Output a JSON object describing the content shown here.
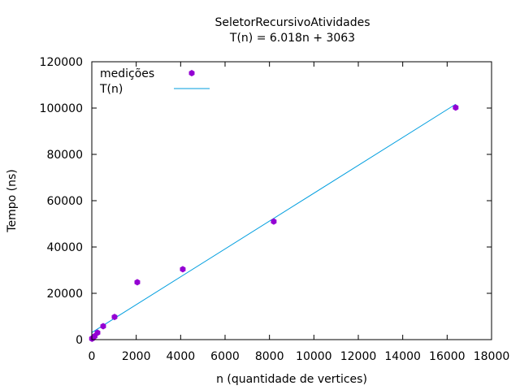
{
  "chart_data": {
    "type": "scatter",
    "title": "SeletorRecursivoAtividades",
    "subtitle": "T(n) = 6.018n + 3063",
    "xlabel": "n (quantidade de vertices)",
    "ylabel": "Tempo (ns)",
    "xlim": [
      0,
      18000
    ],
    "ylim": [
      0,
      120000
    ],
    "x_ticks": [
      "0",
      "2000",
      "4000",
      "6000",
      "8000",
      "10000",
      "12000",
      "14000",
      "16000",
      "18000"
    ],
    "y_ticks": [
      "0",
      "20000",
      "40000",
      "60000",
      "80000",
      "100000",
      "120000"
    ],
    "legend_position": "top-left",
    "grid": false,
    "series": [
      {
        "name": "medições",
        "kind": "scatter",
        "color": "#9400d3",
        "points": [
          {
            "x": 8,
            "y": 400
          },
          {
            "x": 16,
            "y": 450
          },
          {
            "x": 32,
            "y": 600
          },
          {
            "x": 64,
            "y": 800
          },
          {
            "x": 128,
            "y": 1500
          },
          {
            "x": 256,
            "y": 3000
          },
          {
            "x": 512,
            "y": 5800
          },
          {
            "x": 1024,
            "y": 9800
          },
          {
            "x": 2048,
            "y": 24800
          },
          {
            "x": 4096,
            "y": 30400
          },
          {
            "x": 8192,
            "y": 51000
          },
          {
            "x": 16384,
            "y": 100200
          }
        ]
      },
      {
        "name": "T(n)",
        "kind": "line",
        "color": "#009edf",
        "slope": 6.018,
        "intercept": 3063,
        "x_range": [
          0,
          16384
        ]
      }
    ]
  }
}
